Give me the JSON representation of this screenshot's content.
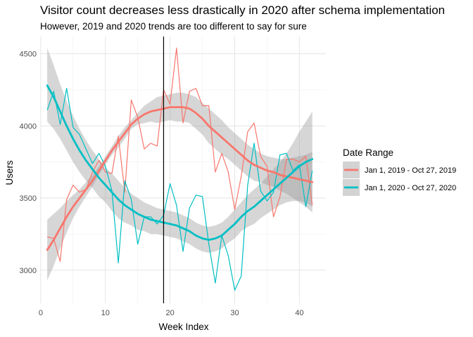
{
  "chart_data": {
    "type": "line",
    "title": "Visitor count decreases less drastically in 2020 after schema implementation",
    "subtitle": "However, 2019 and 2020 trends are too different to say for sure",
    "xlabel": "Week Index",
    "ylabel": "Users",
    "xlim": [
      -0.1,
      44.1
    ],
    "ylim": [
      2770,
      4620
    ],
    "x_ticks": [
      0,
      10,
      20,
      30,
      40
    ],
    "y_ticks": [
      3000,
      3500,
      4000,
      4500
    ],
    "grid": true,
    "vline_x": 19,
    "legend": {
      "title": "Date Range",
      "placement": "right"
    },
    "series": [
      {
        "name": "Jan 1, 2019 - Oct 27, 2019",
        "color": "#F8766D",
        "x": [
          1,
          2,
          3,
          4,
          5,
          6,
          7,
          8,
          9,
          10,
          11,
          12,
          13,
          14,
          15,
          16,
          17,
          18,
          19,
          20,
          21,
          22,
          23,
          24,
          25,
          26,
          27,
          28,
          29,
          30,
          31,
          32,
          33,
          34,
          35,
          36,
          37,
          38,
          39,
          40,
          41,
          42
        ],
        "values": [
          3230,
          3220,
          3060,
          3490,
          3590,
          3540,
          3560,
          3680,
          3760,
          3680,
          3670,
          3930,
          3540,
          4180,
          4060,
          3840,
          3880,
          3860,
          4250,
          4150,
          4540,
          4020,
          4240,
          4260,
          4140,
          4140,
          3680,
          3810,
          3680,
          3420,
          3650,
          3960,
          4020,
          3790,
          3720,
          3370,
          3510,
          3770,
          3770,
          3750,
          3790,
          3450
        ],
        "smooth": [
          3140,
          3210,
          3290,
          3370,
          3440,
          3500,
          3560,
          3620,
          3690,
          3760,
          3830,
          3890,
          3950,
          4010,
          4050,
          4080,
          4100,
          4110,
          4120,
          4130,
          4130,
          4130,
          4120,
          4090,
          4050,
          4000,
          3960,
          3920,
          3880,
          3840,
          3800,
          3760,
          3730,
          3710,
          3690,
          3680,
          3660,
          3650,
          3640,
          3630,
          3620,
          3610
        ],
        "band_upper": [
          3350,
          3390,
          3430,
          3480,
          3520,
          3560,
          3610,
          3660,
          3720,
          3790,
          3860,
          3930,
          3990,
          4040,
          4090,
          4140,
          4170,
          4200,
          4210,
          4220,
          4230,
          4230,
          4220,
          4200,
          4160,
          4120,
          4080,
          4040,
          3990,
          3950,
          3910,
          3870,
          3840,
          3810,
          3790,
          3780,
          3770,
          3770,
          3780,
          3790,
          3800,
          3820
        ],
        "band_lower": [
          2930,
          3030,
          3150,
          3260,
          3360,
          3440,
          3510,
          3580,
          3660,
          3730,
          3800,
          3850,
          3910,
          3980,
          4010,
          4020,
          4030,
          4020,
          4030,
          4040,
          4030,
          4030,
          4020,
          3980,
          3940,
          3880,
          3840,
          3800,
          3770,
          3730,
          3690,
          3650,
          3620,
          3610,
          3590,
          3580,
          3550,
          3530,
          3500,
          3470,
          3440,
          3400
        ]
      },
      {
        "name": "Jan 1, 2020 - Oct 27, 2020",
        "color": "#00BFC4",
        "x": [
          1,
          2,
          3,
          4,
          5,
          6,
          7,
          8,
          9,
          10,
          11,
          12,
          13,
          14,
          15,
          16,
          17,
          18,
          19,
          20,
          21,
          22,
          23,
          24,
          25,
          26,
          27,
          28,
          29,
          30,
          31,
          32,
          33,
          34,
          35,
          36,
          37,
          38,
          39,
          40,
          41,
          42
        ],
        "values": [
          4110,
          4240,
          4010,
          4260,
          3990,
          3940,
          3840,
          3740,
          3810,
          3720,
          3550,
          3050,
          3620,
          3490,
          3180,
          3370,
          3370,
          3320,
          3380,
          3600,
          3450,
          3130,
          3430,
          3520,
          3510,
          3180,
          2910,
          3240,
          3100,
          2860,
          2960,
          3590,
          3880,
          3550,
          3480,
          3540,
          3800,
          3810,
          3690,
          3730,
          3440,
          3690
        ],
        "smooth": [
          4280,
          4200,
          4100,
          4000,
          3910,
          3830,
          3760,
          3700,
          3640,
          3590,
          3540,
          3490,
          3450,
          3420,
          3390,
          3370,
          3350,
          3340,
          3330,
          3320,
          3310,
          3290,
          3270,
          3240,
          3220,
          3210,
          3220,
          3240,
          3280,
          3320,
          3370,
          3410,
          3440,
          3480,
          3520,
          3560,
          3600,
          3640,
          3680,
          3720,
          3750,
          3770
        ],
        "band_upper": [
          4540,
          4420,
          4290,
          4170,
          4070,
          3980,
          3900,
          3830,
          3770,
          3710,
          3670,
          3620,
          3570,
          3530,
          3500,
          3470,
          3450,
          3430,
          3420,
          3410,
          3400,
          3380,
          3360,
          3330,
          3310,
          3300,
          3310,
          3330,
          3370,
          3420,
          3470,
          3520,
          3560,
          3600,
          3650,
          3700,
          3750,
          3810,
          3880,
          3960,
          4030,
          4100
        ],
        "band_lower": [
          4030,
          3980,
          3910,
          3830,
          3750,
          3680,
          3620,
          3570,
          3510,
          3470,
          3410,
          3360,
          3330,
          3310,
          3280,
          3270,
          3250,
          3250,
          3240,
          3230,
          3220,
          3200,
          3180,
          3150,
          3130,
          3120,
          3130,
          3150,
          3190,
          3220,
          3270,
          3300,
          3320,
          3360,
          3390,
          3420,
          3450,
          3470,
          3480,
          3480,
          3470,
          3440
        ]
      }
    ]
  }
}
